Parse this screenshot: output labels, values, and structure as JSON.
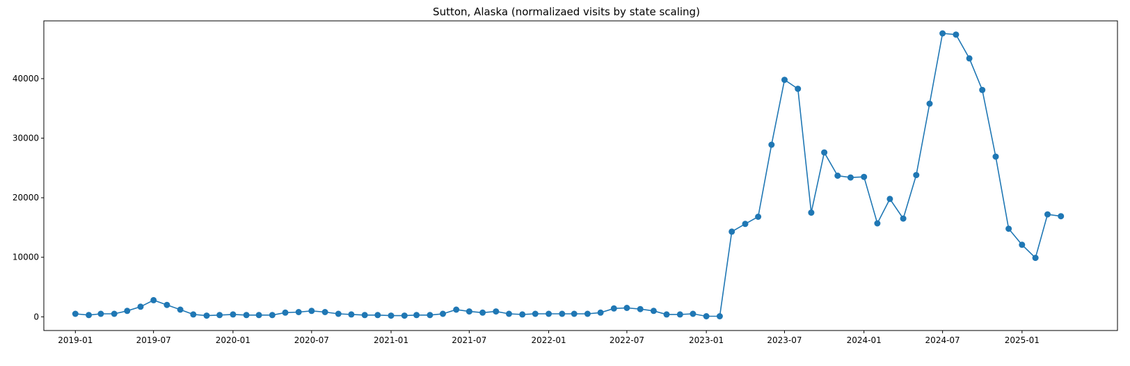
{
  "chart_data": {
    "type": "line",
    "title": "Sutton, Alaska (normalizaed visits by state scaling)",
    "xlabel": "",
    "ylabel": "",
    "x_tick_labels": [
      "2019-01",
      "2019-07",
      "2020-01",
      "2020-07",
      "2021-01",
      "2021-07",
      "2022-01",
      "2022-07",
      "2023-01",
      "2023-07",
      "2024-01",
      "2024-07",
      "2025-01"
    ],
    "y_ticks": [
      0,
      10000,
      20000,
      30000,
      40000
    ],
    "y_tick_labels": [
      "0",
      "10000",
      "20000",
      "30000",
      "40000"
    ],
    "xlim": [
      "2018-10-20",
      "2025-08-10"
    ],
    "ylim": [
      -2300,
      49700
    ],
    "grid": false,
    "color": "#1f77b4",
    "marker": "circle",
    "x": [
      "2019-01",
      "2019-02",
      "2019-03",
      "2019-04",
      "2019-05",
      "2019-06",
      "2019-07",
      "2019-08",
      "2019-09",
      "2019-10",
      "2019-11",
      "2019-12",
      "2020-01",
      "2020-02",
      "2020-03",
      "2020-04",
      "2020-05",
      "2020-06",
      "2020-07",
      "2020-08",
      "2020-09",
      "2020-10",
      "2020-11",
      "2020-12",
      "2021-01",
      "2021-02",
      "2021-03",
      "2021-04",
      "2021-05",
      "2021-06",
      "2021-07",
      "2021-08",
      "2021-09",
      "2021-10",
      "2021-11",
      "2021-12",
      "2022-01",
      "2022-02",
      "2022-03",
      "2022-04",
      "2022-05",
      "2022-06",
      "2022-07",
      "2022-08",
      "2022-09",
      "2022-10",
      "2022-11",
      "2022-12",
      "2023-01",
      "2023-02",
      "2023-03",
      "2023-04",
      "2023-05",
      "2023-06",
      "2023-07",
      "2023-08",
      "2023-09",
      "2023-10",
      "2023-11",
      "2023-12",
      "2024-01",
      "2024-02",
      "2024-03",
      "2024-04",
      "2024-05",
      "2024-06",
      "2024-07",
      "2024-08",
      "2024-09",
      "2024-10",
      "2024-11",
      "2024-12",
      "2025-01",
      "2025-02",
      "2025-03",
      "2025-04"
    ],
    "series": [
      {
        "values": [
          500,
          300,
          500,
          500,
          1000,
          1700,
          2800,
          2000,
          1200,
          400,
          200,
          300,
          400,
          300,
          300,
          300,
          700,
          800,
          1000,
          800,
          500,
          400,
          300,
          300,
          200,
          200,
          300,
          300,
          500,
          1200,
          900,
          700,
          900,
          500,
          400,
          500,
          500,
          500,
          500,
          500,
          700,
          1400,
          1500,
          1300,
          1000,
          400,
          400,
          500,
          100,
          100,
          14300,
          15600,
          16800,
          28900,
          39800,
          38300,
          17500,
          27600,
          23700,
          23400,
          23500,
          15700,
          19800,
          16500,
          23800,
          35800,
          47600,
          47400,
          43400,
          38100,
          26900,
          14800,
          12100,
          9900,
          17200,
          16900
        ]
      }
    ]
  }
}
